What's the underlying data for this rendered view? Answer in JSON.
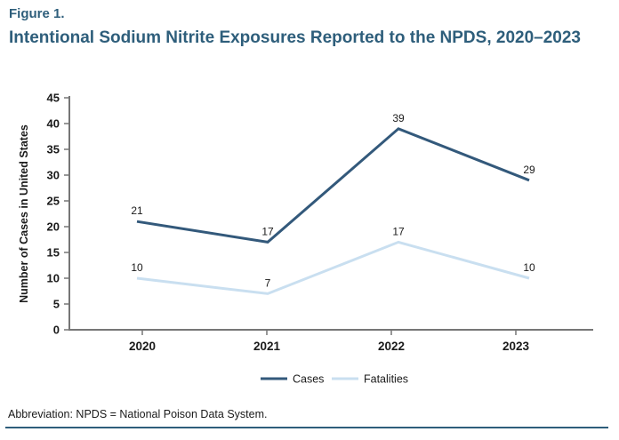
{
  "figure": {
    "label": "Figure 1.",
    "title": "Intentional Sodium Nitrite Exposures Reported to the NPDS, 2020–2023"
  },
  "chart_data": {
    "type": "line",
    "categories": [
      "2020",
      "2021",
      "2022",
      "2023"
    ],
    "series": [
      {
        "name": "Cases",
        "values": [
          21,
          17,
          39,
          29
        ],
        "color": "#33597B"
      },
      {
        "name": "Fatalities",
        "values": [
          10,
          7,
          17,
          10
        ],
        "color": "#C9DFF0"
      }
    ],
    "title": "",
    "xlabel": "",
    "ylabel": "Number of Cases in United States",
    "ylim": [
      0,
      45
    ],
    "ytick_step": 5,
    "grid": false,
    "data_labels": true,
    "legend_position": "bottom"
  },
  "footer": {
    "note": "Abbreviation: NPDS = National Poison Data System."
  },
  "colors": {
    "title_teal": "#2E5E7B",
    "axis": "#767676",
    "text": "#1A1A1A",
    "rule": "#2E5E7B"
  }
}
